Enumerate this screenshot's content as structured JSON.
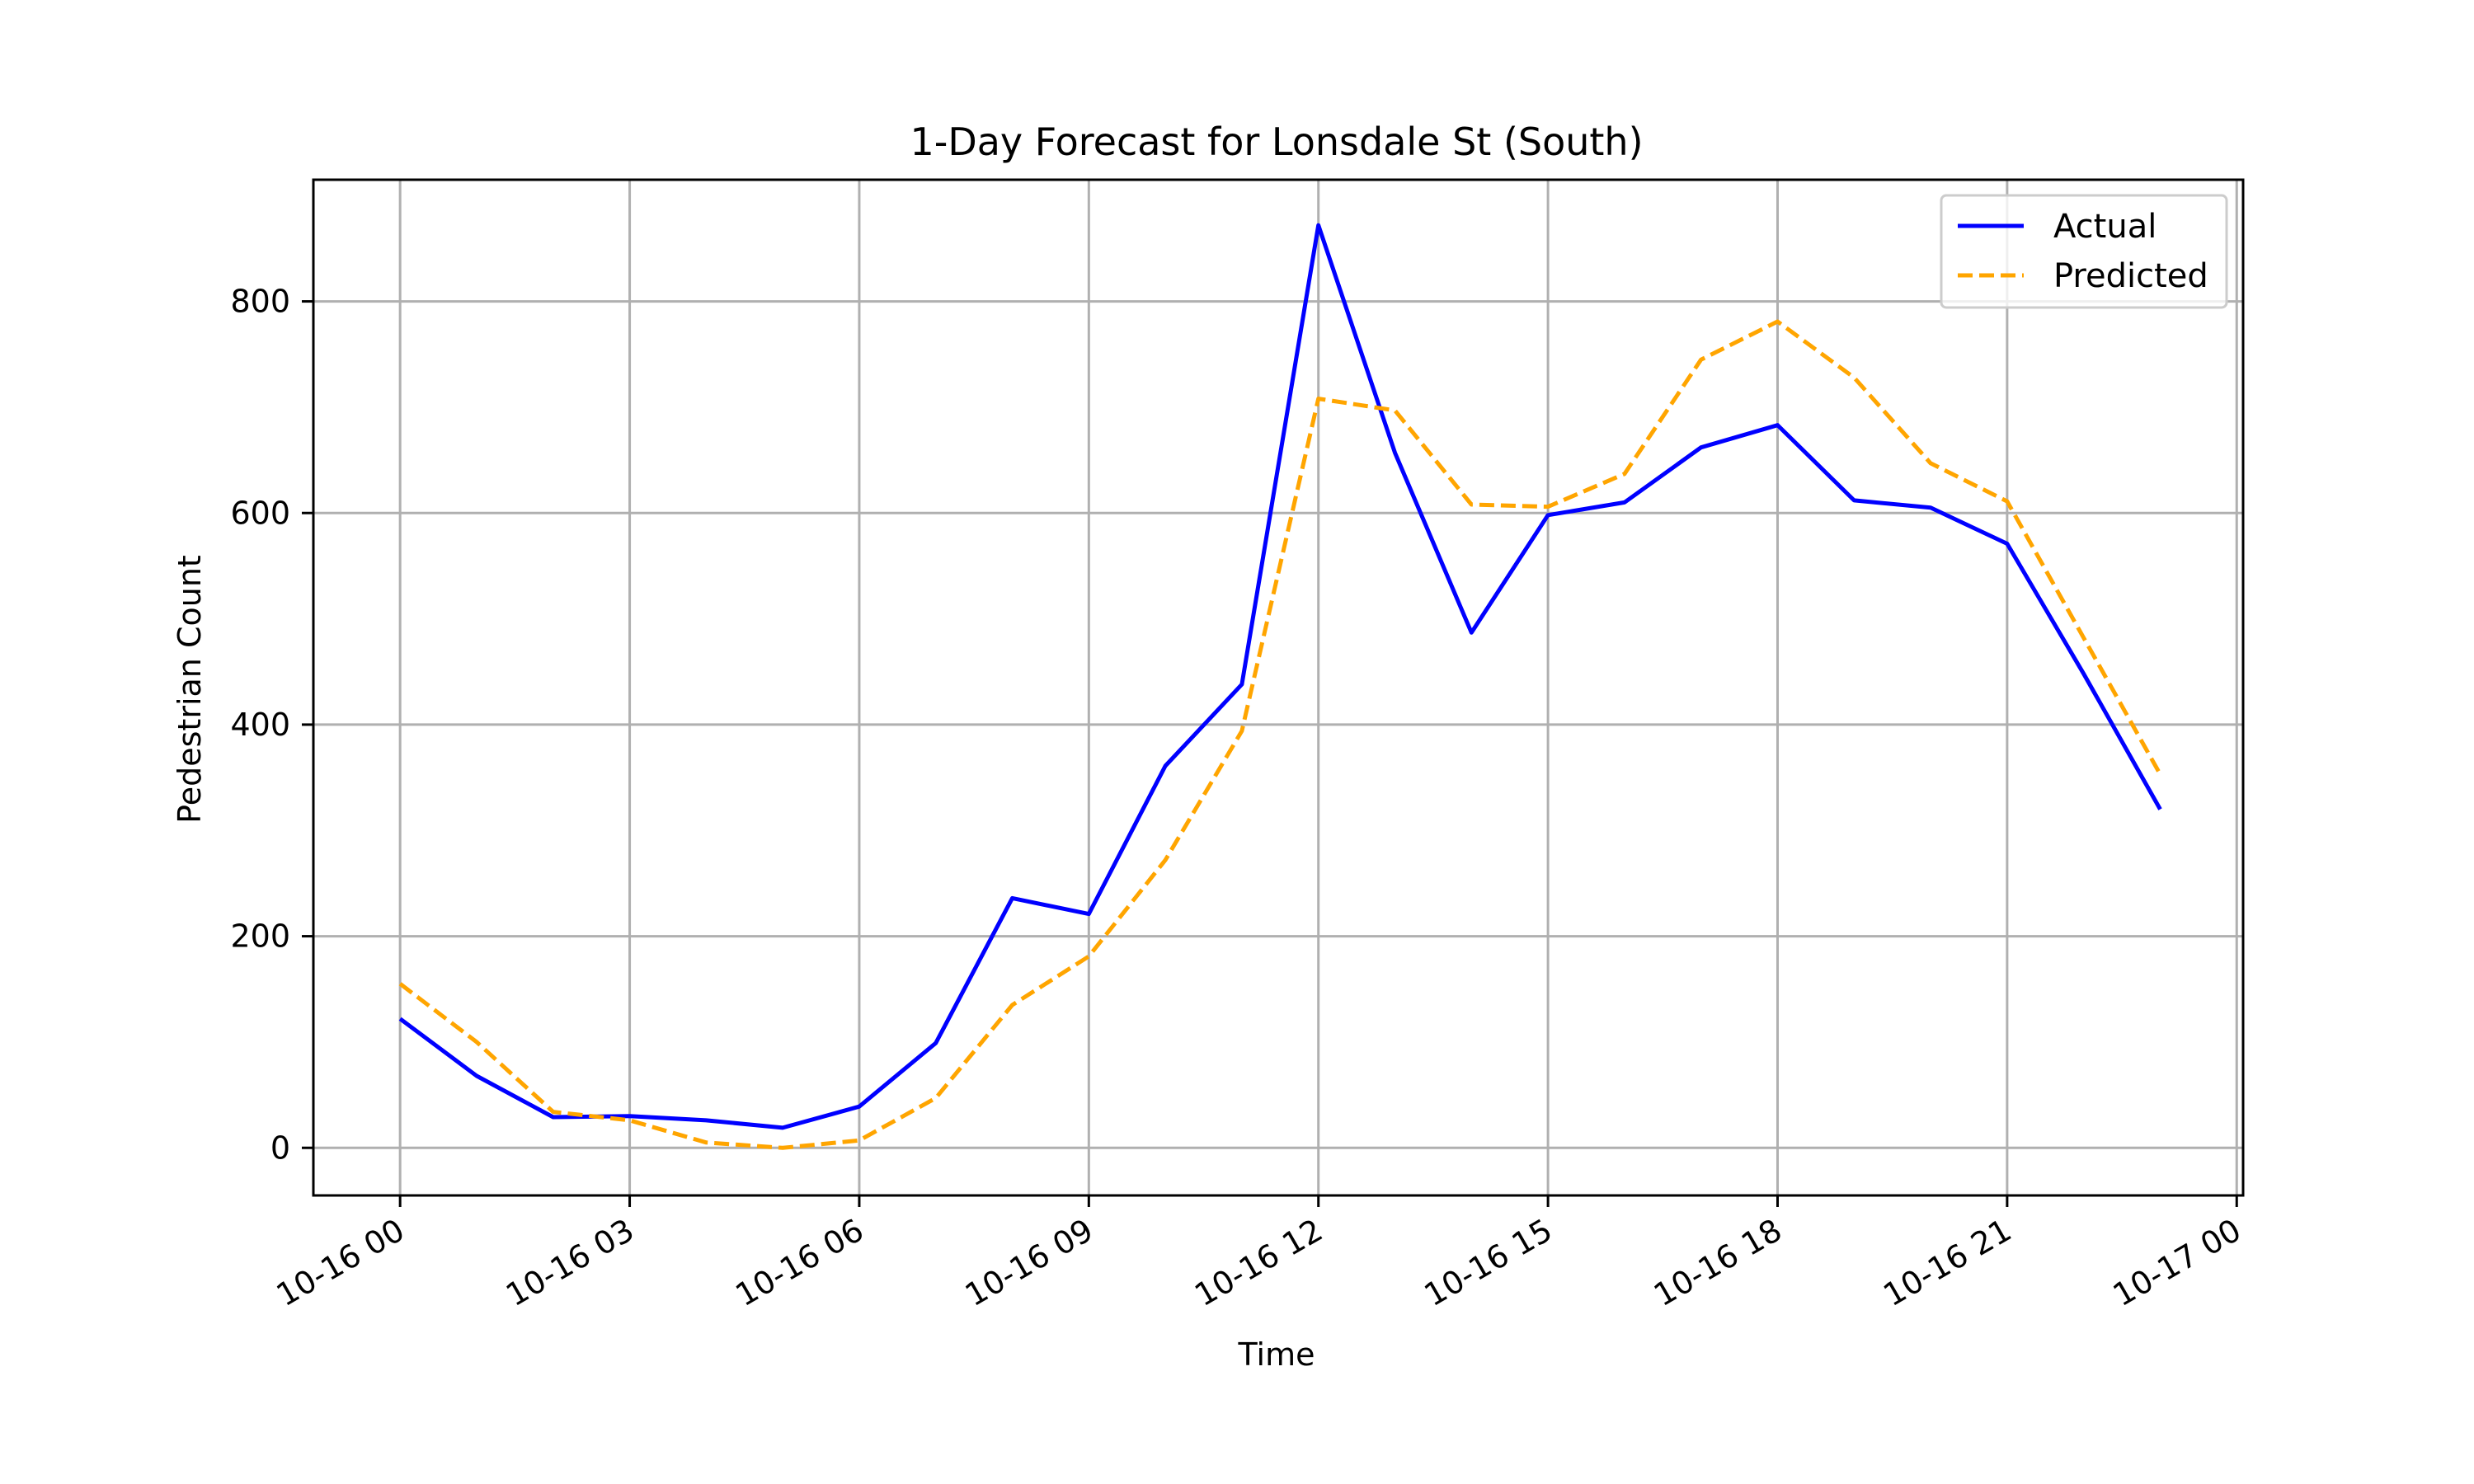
{
  "chart_data": {
    "type": "line",
    "title": "1-Day Forecast for Lonsdale St (South)",
    "xlabel": "Time",
    "ylabel": "Pedestrian Count",
    "x": [
      "10-16 00",
      "10-16 01",
      "10-16 02",
      "10-16 03",
      "10-16 04",
      "10-16 05",
      "10-16 06",
      "10-16 07",
      "10-16 08",
      "10-16 09",
      "10-16 10",
      "10-16 11",
      "10-16 12",
      "10-16 13",
      "10-16 14",
      "10-16 15",
      "10-16 16",
      "10-16 17",
      "10-16 18",
      "10-16 19",
      "10-16 20",
      "10-16 21",
      "10-16 22",
      "10-16 23"
    ],
    "x_ticks": [
      "10-16 00",
      "10-16 03",
      "10-16 06",
      "10-16 09",
      "10-16 12",
      "10-16 15",
      "10-16 18",
      "10-16 21",
      "10-17 00"
    ],
    "xlim": [
      "10-15 22:52",
      "10-17 00:05"
    ],
    "y_ticks": [
      0,
      200,
      400,
      600,
      800
    ],
    "ylim": [
      -45,
      915
    ],
    "grid": true,
    "legend_position": "top-right",
    "series": [
      {
        "name": "Actual",
        "color": "#0000ff",
        "style": "solid",
        "values": [
          122,
          68,
          29,
          30,
          26,
          19,
          39,
          99,
          236,
          221,
          361,
          438,
          872,
          657,
          487,
          598,
          610,
          662,
          683,
          612,
          605,
          571,
          448,
          320
        ]
      },
      {
        "name": "Predicted",
        "color": "#ffa500",
        "style": "dashed",
        "values": [
          155,
          100,
          34,
          26,
          5,
          0,
          7,
          47,
          135,
          181,
          272,
          394,
          708,
          697,
          608,
          606,
          637,
          745,
          781,
          728,
          647,
          611,
          482,
          353
        ]
      }
    ]
  }
}
